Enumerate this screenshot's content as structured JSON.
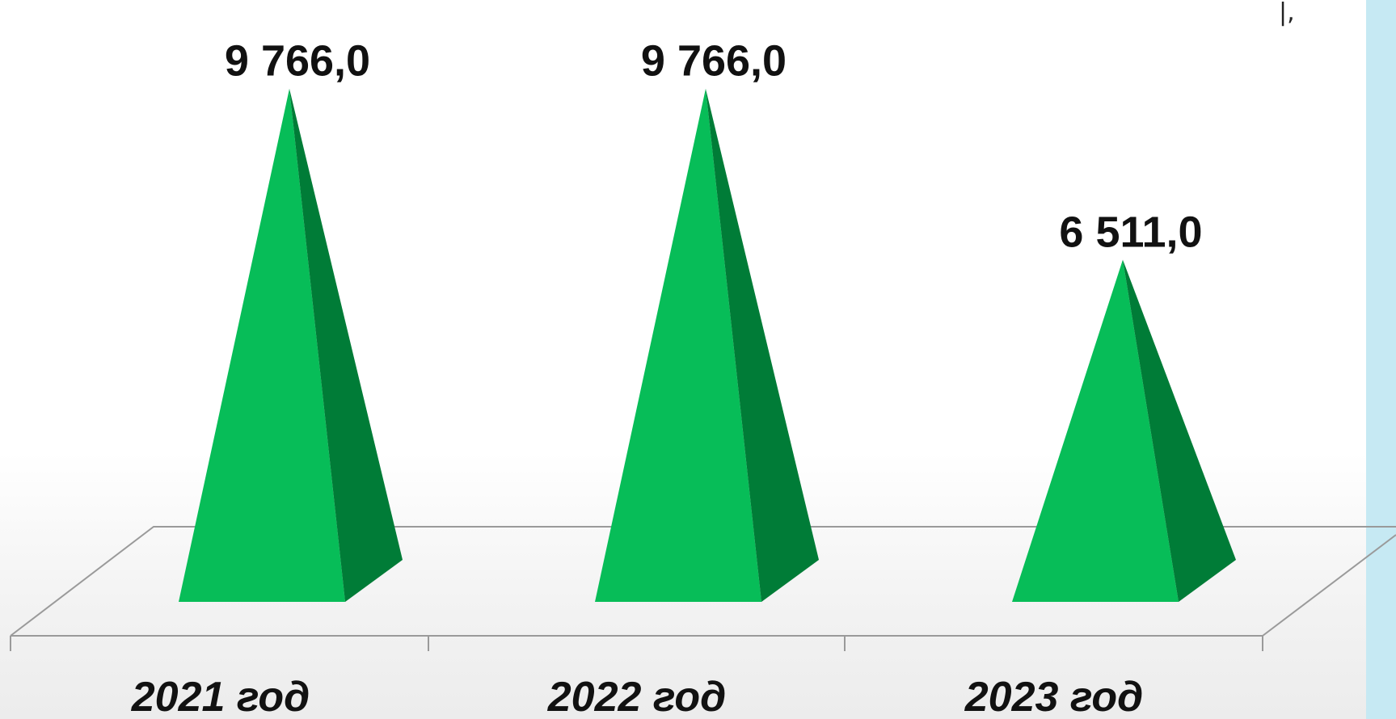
{
  "chart_data": {
    "type": "bar",
    "style": "3d-pyramid",
    "categories": [
      "2021 год",
      "2022 год",
      "2023 год"
    ],
    "values": [
      9766.0,
      9766.0,
      6511.0
    ],
    "value_labels": [
      "9 766,0",
      "9 766,0",
      "6 511,0"
    ],
    "title": "",
    "xlabel": "",
    "ylabel": "",
    "ylim": [
      0,
      10500
    ],
    "grid": false,
    "legend": "none",
    "colors": {
      "front": "#07bd58",
      "side": "#007c37",
      "floor_edge": "#9a9a9a",
      "label": "#111111"
    }
  }
}
